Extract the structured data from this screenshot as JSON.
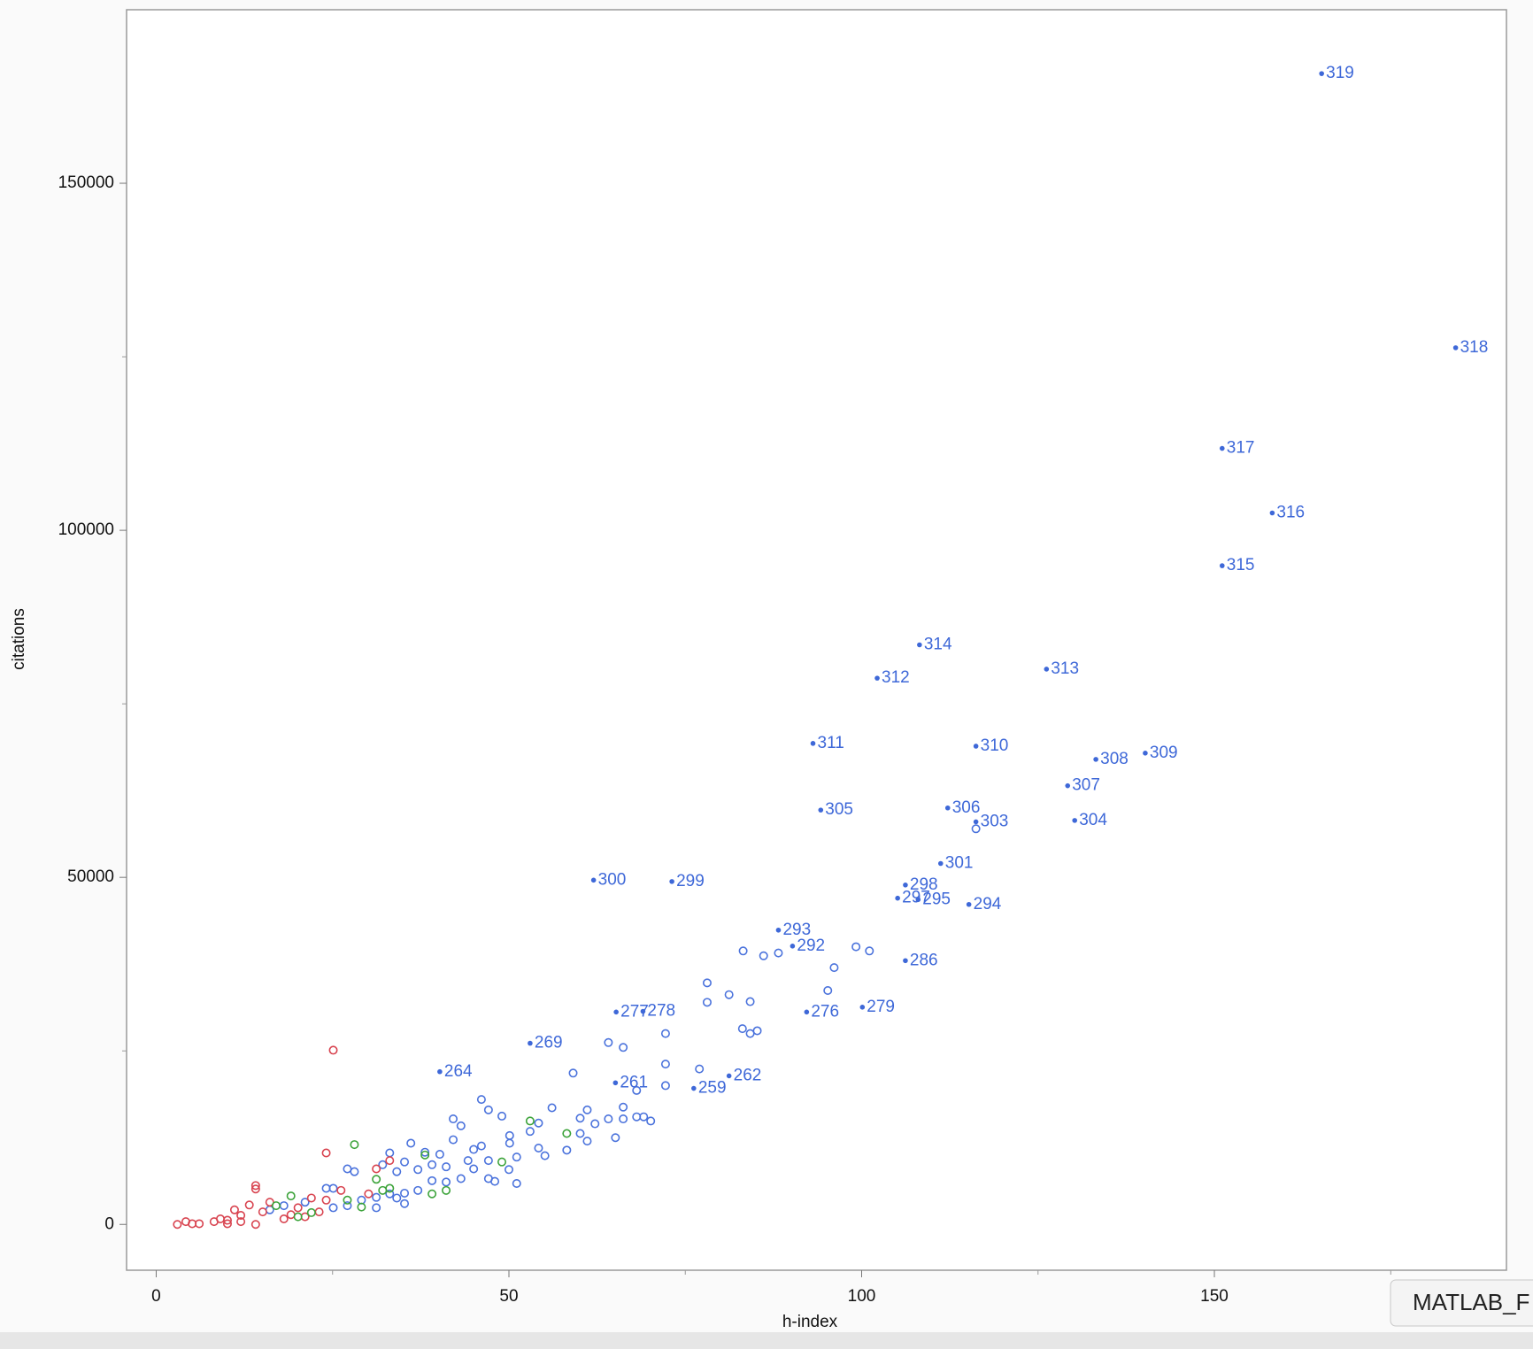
{
  "chart_data": {
    "type": "scatter",
    "xlabel": "h-index",
    "ylabel": "citations",
    "xlim": [
      -4.2,
      191.4
    ],
    "ylim": [
      -6600,
      175000
    ],
    "xticks": [
      0,
      50,
      100,
      150
    ],
    "yticks": [
      0,
      50000,
      100000,
      150000
    ],
    "xminorticks": [
      25,
      75,
      125,
      175
    ],
    "yminorticks": [
      25000,
      75000,
      125000
    ],
    "tooltip": "MATLAB_F",
    "series": [
      {
        "color": "#4a72dc",
        "marker": "open",
        "x": [
          116.2,
          83.2,
          86.1,
          88.2,
          99.2,
          101.1,
          96.1,
          95.2,
          78.1,
          78.1,
          81.2,
          84.2,
          83.1,
          84.2,
          85.2,
          72.2,
          64.1,
          66.2,
          72.2,
          77.0,
          59.1,
          72.2,
          68.1,
          46.1,
          42.1,
          43.2,
          47.1,
          49.0,
          56.1,
          61.1,
          60.1,
          62.2,
          64.1,
          66.2,
          66.2,
          68.1,
          69.1,
          70.1,
          54.2,
          53.0,
          50.1,
          60.1,
          65.1,
          61.1,
          50.1,
          46.1,
          45.0,
          42.1,
          54.2,
          58.2,
          55.1,
          51.1,
          47.1,
          38.1,
          40.2,
          36.1,
          33.1,
          35.2,
          32.1,
          44.2,
          39.1,
          41.1,
          37.1,
          34.1,
          45.0,
          50.0,
          47.1,
          48.0,
          51.1,
          43.2,
          41.1,
          39.1,
          37.1,
          35.2,
          33.1,
          31.2,
          29.1,
          27.1,
          28.1,
          25.1,
          24.1,
          21.1,
          18.1,
          16.1,
          31.2,
          35.2,
          34.1,
          27.1,
          25.1
        ],
        "y": [
          57000,
          39400,
          38700,
          39100,
          40000,
          39400,
          37000,
          33700,
          34800,
          32000,
          33100,
          32100,
          28200,
          27500,
          27900,
          27500,
          26200,
          25500,
          23100,
          22400,
          21800,
          20000,
          19300,
          18000,
          15200,
          14200,
          16500,
          15600,
          16800,
          16500,
          15300,
          14500,
          15200,
          16900,
          15200,
          15500,
          15500,
          14900,
          14600,
          13400,
          12800,
          13100,
          12500,
          12000,
          11700,
          11300,
          10800,
          12200,
          11000,
          10700,
          9900,
          9700,
          9200,
          10400,
          10100,
          11700,
          10300,
          9000,
          8600,
          9200,
          8600,
          8300,
          7900,
          7600,
          8000,
          7900,
          6600,
          6200,
          5900,
          6600,
          6100,
          6300,
          4900,
          4500,
          4400,
          3900,
          3500,
          8000,
          7600,
          5200,
          5200,
          3200,
          2700,
          2100,
          2400,
          3000,
          3800,
          2700,
          2400
        ]
      },
      {
        "color": "#d8434f",
        "marker": "open",
        "x": [
          25.1,
          24.1,
          31.2,
          33.1,
          14.1,
          14.1,
          30.1,
          26.2,
          22.0,
          24.1,
          16.1,
          13.2,
          11.1,
          15.1,
          12.0,
          9.1,
          6.1,
          4.2,
          3.0,
          5.1,
          8.2,
          10.1,
          10.1,
          12.0,
          14.1,
          19.1,
          23.1,
          20.1,
          18.1,
          21.1
        ],
        "y": [
          25100,
          10300,
          8000,
          9200,
          5600,
          5100,
          4400,
          4900,
          3800,
          3500,
          3200,
          2800,
          2100,
          1800,
          1300,
          800,
          100,
          400,
          0,
          100,
          400,
          600,
          100,
          400,
          0,
          1400,
          1800,
          2400,
          800,
          1100
        ]
      },
      {
        "color": "#3ca33a",
        "marker": "open",
        "x": [
          28.1,
          53.0,
          58.2,
          49.0,
          31.2,
          19.1,
          27.1,
          32.1,
          33.1,
          39.1,
          41.1,
          38.1,
          17.0,
          22.0,
          29.1,
          20.1
        ],
        "y": [
          11500,
          14900,
          13100,
          9000,
          6500,
          4100,
          3500,
          4900,
          5200,
          4400,
          4900,
          10000,
          2700,
          1700,
          2500,
          1100
        ]
      },
      {
        "color": "#3e68d8",
        "marker": "filled",
        "labels": [
          "319",
          "318",
          "317",
          "316",
          "315",
          "314",
          "313",
          "312",
          "311",
          "310",
          "309",
          "308",
          "307",
          "306",
          "305",
          "304",
          "303",
          "301",
          "300",
          "299",
          "298",
          "297",
          "295",
          "294",
          "293",
          "292",
          "286",
          "278",
          "277",
          "276",
          "279",
          "269",
          "264",
          "262",
          "261",
          "259"
        ],
        "x": [
          165.2,
          184.2,
          151.1,
          158.2,
          151.1,
          108.2,
          126.2,
          102.2,
          93.1,
          116.2,
          140.2,
          133.2,
          129.2,
          112.2,
          94.2,
          130.2,
          116.2,
          111.2,
          62.0,
          73.1,
          106.2,
          105.1,
          108.0,
          115.2,
          88.2,
          90.2,
          106.2,
          69.0,
          65.2,
          92.2,
          100.1,
          53.0,
          40.2,
          81.2,
          65.1,
          76.2
        ],
        "y": [
          165800,
          126300,
          111800,
          102500,
          94900,
          83500,
          80000,
          78700,
          69300,
          68900,
          67900,
          67000,
          63200,
          60000,
          59700,
          58200,
          58000,
          52000,
          49600,
          49400,
          48900,
          47000,
          46800,
          46100,
          42400,
          40100,
          38000,
          30700,
          30600,
          30600,
          31300,
          26100,
          22000,
          21400,
          20400,
          19600
        ]
      }
    ]
  }
}
